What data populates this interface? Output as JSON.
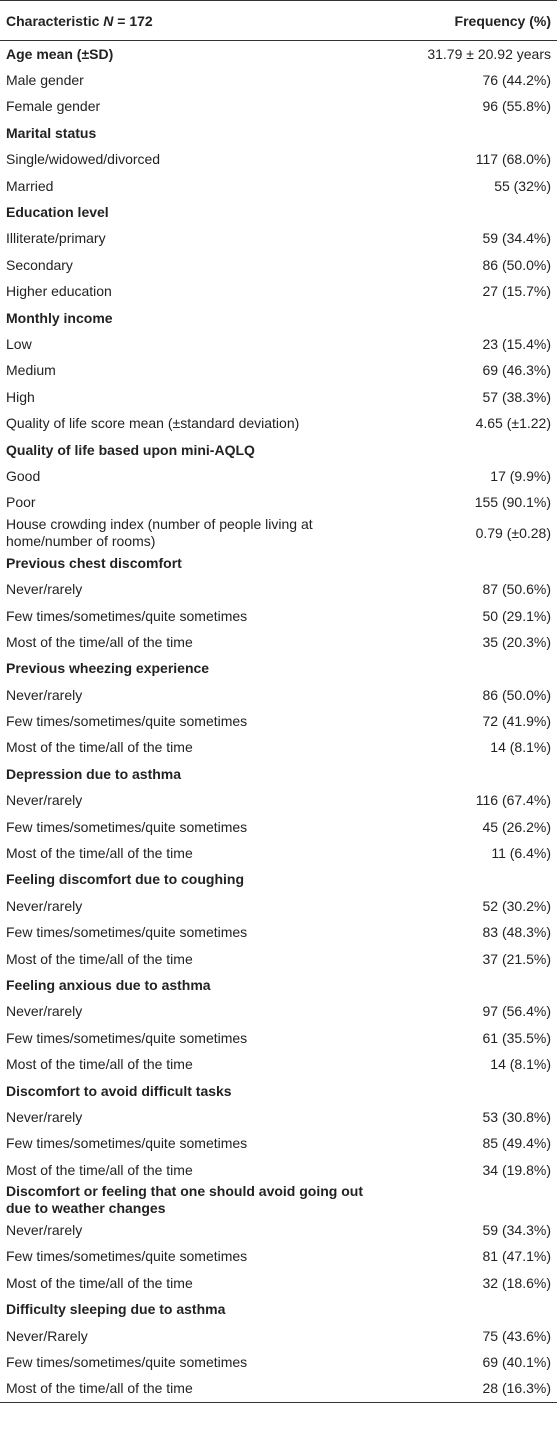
{
  "table": {
    "header": {
      "characteristic": [
        "Characteristic",
        "N",
        "= 172"
      ],
      "frequency": "Frequency (%)"
    },
    "rows": [
      {
        "label": "Age mean (±SD)",
        "value": "31.79 ± 20.92 years",
        "bold": true
      },
      {
        "label": "Male gender",
        "value": "76 (44.2%)"
      },
      {
        "label": "Female gender",
        "value": "96 (55.8%)"
      },
      {
        "label": "Marital status",
        "bold": true
      },
      {
        "label": "Single/widowed/divorced",
        "value": "117 (68.0%)"
      },
      {
        "label": "Married",
        "value": "55 (32%)"
      },
      {
        "label": "Education level",
        "bold": true
      },
      {
        "label": "Illiterate/primary",
        "value": "59 (34.4%)"
      },
      {
        "label": "Secondary",
        "value": "86 (50.0%)"
      },
      {
        "label": "Higher education",
        "value": "27 (15.7%)"
      },
      {
        "label": "Monthly income",
        "bold": true
      },
      {
        "label": "Low",
        "value": "23 (15.4%)"
      },
      {
        "label": "Medium",
        "value": "69 (46.3%)"
      },
      {
        "label": "High",
        "value": "57 (38.3%)"
      },
      {
        "label": "Quality of life score mean (±standard deviation)",
        "value": "4.65 (±1.22)"
      },
      {
        "label": "Quality of life based upon mini-AQLQ",
        "bold": true
      },
      {
        "label": "Good",
        "value": "17 (9.9%)"
      },
      {
        "label": "Poor",
        "value": "155 (90.1%)"
      },
      {
        "label": "House crowding index (number of people living at home/number of rooms)",
        "value": "0.79 (±0.28)"
      },
      {
        "label": "Previous chest discomfort",
        "bold": true
      },
      {
        "label": "Never/rarely",
        "value": "87 (50.6%)"
      },
      {
        "label": "Few times/sometimes/quite sometimes",
        "value": "50 (29.1%)"
      },
      {
        "label": "Most of the time/all of the time",
        "value": "35 (20.3%)"
      },
      {
        "label": "Previous wheezing experience",
        "bold": true
      },
      {
        "label": "Never/rarely",
        "value": "86 (50.0%)"
      },
      {
        "label": "Few times/sometimes/quite sometimes",
        "value": "72 (41.9%)"
      },
      {
        "label": "Most of the time/all of the time",
        "value": "14 (8.1%)"
      },
      {
        "label": "Depression due to asthma",
        "bold": true
      },
      {
        "label": "Never/rarely",
        "value": "116 (67.4%)"
      },
      {
        "label": "Few times/sometimes/quite sometimes",
        "value": "45 (26.2%)"
      },
      {
        "label": "Most of the time/all of the time",
        "value": "11 (6.4%)"
      },
      {
        "label": "Feeling discomfort due to coughing",
        "bold": true
      },
      {
        "label": "Never/rarely",
        "value": "52 (30.2%)"
      },
      {
        "label": "Few times/sometimes/quite sometimes",
        "value": "83 (48.3%)"
      },
      {
        "label": "Most of the time/all of the time",
        "value": "37 (21.5%)"
      },
      {
        "label": "Feeling anxious due to asthma",
        "bold": true
      },
      {
        "label": "Never/rarely",
        "value": "97 (56.4%)"
      },
      {
        "label": "Few times/sometimes/quite sometimes",
        "value": "61 (35.5%)"
      },
      {
        "label": "Most of the time/all of the time",
        "value": "14 (8.1%)"
      },
      {
        "label": "Discomfort to avoid difficult tasks",
        "bold": true
      },
      {
        "label": "Never/rarely",
        "value": "53 (30.8%)"
      },
      {
        "label": "Few times/sometimes/quite sometimes",
        "value": "85 (49.4%)"
      },
      {
        "label": "Most of the time/all of the time",
        "value": "34 (19.8%)"
      },
      {
        "label": "Discomfort or feeling that one should avoid going out due to weather changes",
        "bold": true
      },
      {
        "label": "Never/rarely",
        "value": "59 (34.3%)"
      },
      {
        "label": "Few times/sometimes/quite sometimes",
        "value": "81 (47.1%)"
      },
      {
        "label": "Most of the time/all of the time",
        "value": "32 (18.6%)"
      },
      {
        "label": "Difficulty sleeping due to asthma",
        "bold": true
      },
      {
        "label": "Never/Rarely",
        "value": "75 (43.6%)"
      },
      {
        "label": "Few times/sometimes/quite sometimes",
        "value": "69 (40.1%)"
      },
      {
        "label": "Most of the time/all of the time",
        "value": "28 (16.3%)"
      }
    ]
  }
}
